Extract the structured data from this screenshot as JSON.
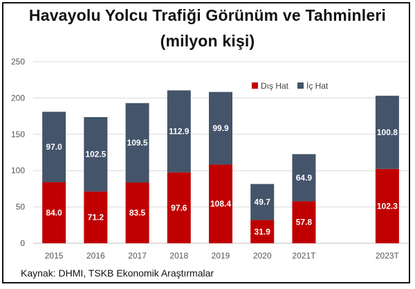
{
  "header": {
    "title_line1": "Havayolu Yolcu Trafiği Görünüm ve Tahminleri",
    "title_line2": "(milyon kişi)"
  },
  "footer": {
    "source": "Kaynak: DHMI, TSKB Ekonomik Araştırmalar"
  },
  "colors": {
    "dis_hat": "#c00000",
    "ic_hat": "#44546a",
    "grid": "#d9d9d9",
    "axis": "#bfbfbf"
  },
  "chart_data": {
    "type": "bar",
    "stacked": true,
    "categories": [
      "2015",
      "2016",
      "2017",
      "2018",
      "2019",
      "2020",
      "2021T",
      "",
      "2023T"
    ],
    "series": [
      {
        "name": "Dış Hat",
        "values": [
          84.0,
          71.2,
          83.5,
          97.6,
          108.4,
          31.9,
          57.8,
          null,
          102.3
        ]
      },
      {
        "name": "İç Hat",
        "values": [
          97.0,
          102.5,
          109.5,
          112.9,
          99.9,
          49.7,
          64.9,
          null,
          100.8
        ]
      }
    ],
    "data_labels": [
      [
        "84.0",
        "71.2",
        "83.5",
        "97.6",
        "108.4",
        "31.9",
        "57.8",
        null,
        "102.3"
      ],
      [
        "97.0",
        "102.5",
        "109.5",
        "112.9",
        "99.9",
        "49.7",
        "64.9",
        null,
        "100.8"
      ]
    ],
    "ylim": [
      0,
      250
    ],
    "yticks": [
      "0",
      "50",
      "100",
      "150",
      "200",
      "250"
    ],
    "grid": true,
    "legend": "top-right"
  }
}
